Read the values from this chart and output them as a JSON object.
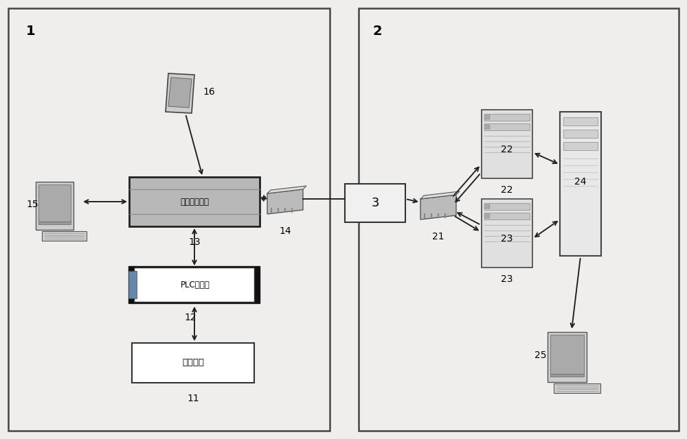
{
  "bg_color": "#f0eeec",
  "box_bg": "#f0eeec",
  "border_color": "#444444",
  "arrow_color": "#222222",
  "remote_fill": "#b8b8b8",
  "remote_edge": "#222222",
  "plc_outer_fill": "#222222",
  "plc_inner_fill": "#ffffff",
  "zhiyang_fill": "#ffffff",
  "server_fill": "#e0e0e0",
  "server_edge": "#444444",
  "tower_fill": "#e8e8e8",
  "tower_edge": "#444444",
  "box3_fill": "#f0f0f0",
  "label1": "1",
  "label2": "2",
  "label3": "3",
  "label11": "11",
  "label12": "12",
  "label13": "13",
  "label14": "14",
  "label15": "15",
  "label16": "16",
  "label21": "21",
  "label22": "22",
  "label23": "23",
  "label24": "24",
  "label25": "25",
  "text_remote": "远程控制终端",
  "text_plc": "PLC控制器",
  "text_zhiyang": "制氧设备"
}
